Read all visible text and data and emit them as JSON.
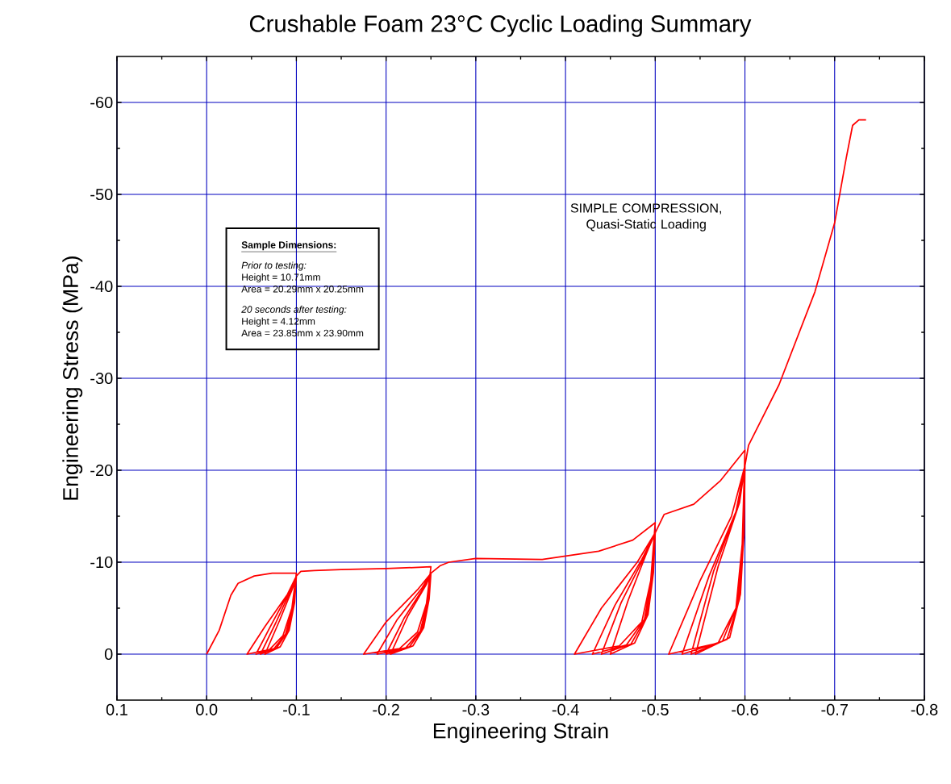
{
  "chart_data": {
    "type": "line",
    "title": "Crushable Foam 23°C Cyclic Loading Summary",
    "xlabel": "Engineering Strain",
    "ylabel": "Engineering Stress (MPa)",
    "annotations": [
      "SIMPLE COMPRESSION, Quasi-Static Loading",
      "Sample Dimensions:",
      "Prior to testing:",
      "Height = 10.71mm",
      "Area = 20.29mm x 20.25mm",
      "20 seconds after testing:",
      "Height = 4.12mm",
      "Area = 23.85mm x 23.90mm"
    ],
    "xlim": [
      0.1,
      -0.8
    ],
    "ylim": [
      5,
      -65
    ],
    "xticks": [
      0.1,
      {
        "value": 0,
        "label": "0.0"
      },
      -0.1,
      -0.2,
      -0.3,
      -0.4,
      -0.5,
      -0.6,
      -0.7,
      -0.8
    ],
    "yticks": [
      0,
      -10,
      -20,
      -30,
      -40,
      -50,
      -60
    ],
    "grid": true,
    "marker": "none",
    "line_style": "solid",
    "series": [
      {
        "color": "#ff0000",
        "x": [
          0,
          -0.014,
          -0.027,
          -0.035,
          -0.053,
          -0.073,
          -0.1,
          -0.095,
          -0.085,
          -0.07,
          -0.045,
          -0.065,
          -0.09,
          -0.1,
          -0.096,
          -0.088,
          -0.075,
          -0.055,
          -0.072,
          -0.092,
          -0.1,
          -0.097,
          -0.09,
          -0.078,
          -0.06,
          -0.077,
          -0.094,
          -0.1,
          -0.098,
          -0.092,
          -0.082,
          -0.065,
          -0.081,
          -0.096,
          -0.1,
          -0.105,
          -0.12,
          -0.15,
          -0.2,
          -0.25,
          -0.245,
          -0.235,
          -0.215,
          -0.175,
          -0.2,
          -0.235,
          -0.25,
          -0.246,
          -0.238,
          -0.222,
          -0.19,
          -0.212,
          -0.24,
          -0.25,
          -0.247,
          -0.24,
          -0.226,
          -0.2,
          -0.22,
          -0.243,
          -0.25,
          -0.248,
          -0.242,
          -0.23,
          -0.205,
          -0.224,
          -0.245,
          -0.25,
          -0.26,
          -0.27,
          -0.3,
          -0.374,
          -0.437,
          -0.475,
          -0.5,
          -0.495,
          -0.485,
          -0.46,
          -0.41,
          -0.44,
          -0.48,
          -0.5,
          -0.496,
          -0.488,
          -0.468,
          -0.43,
          -0.455,
          -0.485,
          -0.5,
          -0.497,
          -0.49,
          -0.473,
          -0.44,
          -0.462,
          -0.488,
          -0.5,
          -0.498,
          -0.492,
          -0.477,
          -0.45,
          -0.47,
          -0.49,
          -0.5,
          -0.51,
          -0.543,
          -0.573,
          -0.6,
          -0.597,
          -0.59,
          -0.57,
          -0.515,
          -0.55,
          -0.585,
          -0.6,
          -0.598,
          -0.592,
          -0.575,
          -0.53,
          -0.56,
          -0.59,
          -0.6,
          -0.599,
          -0.594,
          -0.58,
          -0.54,
          -0.565,
          -0.592,
          -0.6,
          -0.599,
          -0.595,
          -0.583,
          -0.545,
          -0.57,
          -0.594,
          -0.6,
          -0.604,
          -0.638,
          -0.678,
          -0.7,
          -0.713,
          -0.72,
          -0.727,
          -0.735
        ],
        "values": [
          0,
          -2.6,
          -6.4,
          -7.7,
          -8.5,
          -8.8,
          -8.8,
          -5,
          -2,
          -0.5,
          0,
          -3,
          -6.5,
          -8.5,
          -5.2,
          -2.2,
          -0.6,
          0,
          -3.2,
          -6.8,
          -8.5,
          -5.4,
          -2.4,
          -0.7,
          0,
          -3.4,
          -7,
          -8.5,
          -5.6,
          -2.6,
          -0.8,
          0,
          -3.6,
          -7.2,
          -8.5,
          -9,
          -9.1,
          -9.2,
          -9.3,
          -9.5,
          -5.5,
          -2.4,
          -0.6,
          0,
          -3.5,
          -7,
          -8.8,
          -5.6,
          -2.5,
          -0.7,
          0,
          -3.7,
          -7.2,
          -8.8,
          -5.8,
          -2.7,
          -0.8,
          0,
          -3.9,
          -7.4,
          -8.8,
          -6,
          -2.9,
          -0.9,
          0,
          -4.1,
          -7.6,
          -8.8,
          -9.6,
          -10,
          -10.4,
          -10.3,
          -11.2,
          -12.4,
          -14.3,
          -8,
          -3.5,
          -0.9,
          0,
          -5,
          -10,
          -13.2,
          -8.3,
          -3.8,
          -1,
          0,
          -5.3,
          -10.3,
          -13.2,
          -8.6,
          -4,
          -1.1,
          0,
          -5.6,
          -10.6,
          -13.2,
          -8.9,
          -4.3,
          -1.2,
          0,
          -5.9,
          -10.9,
          -13.2,
          -15.2,
          -16.3,
          -18.9,
          -22.2,
          -12,
          -5,
          -1.2,
          0,
          -8,
          -15,
          -20.5,
          -12.5,
          -5.5,
          -1.4,
          0,
          -8.5,
          -15.5,
          -20.5,
          -13,
          -6,
          -1.6,
          0,
          -9,
          -16,
          -20.5,
          -13.5,
          -6.5,
          -1.8,
          0,
          -9.5,
          -16.5,
          -20.5,
          -22.7,
          -29.3,
          -39.4,
          -46.9,
          -54,
          -57.5,
          -58.1,
          -58.1
        ]
      }
    ]
  }
}
